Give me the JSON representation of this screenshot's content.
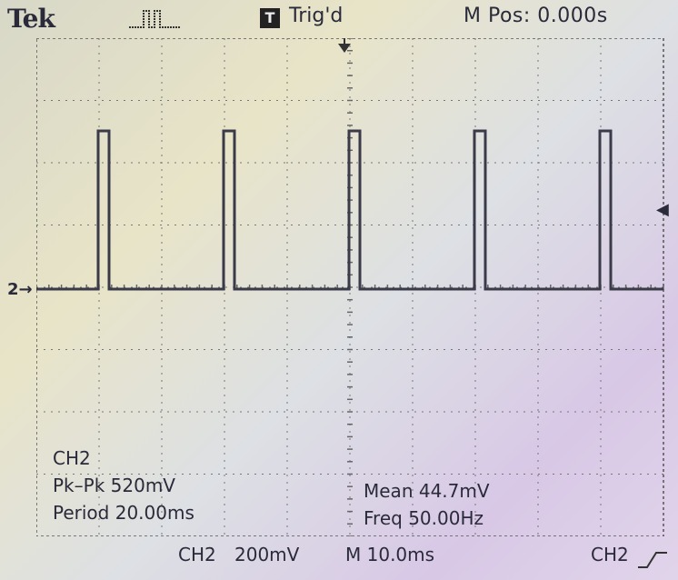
{
  "header": {
    "brand": "Tek",
    "acquire_icon": "pulse-icon",
    "trigger_box": "T",
    "trigger_status": "Trig'd",
    "main_position": "M Pos: 0.000s"
  },
  "screen": {
    "channel_marker": "2",
    "trace_color": "#3a3a48"
  },
  "measurements": {
    "channel": "CH2",
    "pk_pk": "Pk–Pk 520mV",
    "period": "Period 20.00ms",
    "mean": "Mean 44.7mV",
    "freq": "Freq 50.00Hz"
  },
  "footer": {
    "ch_scale_channel": "CH2",
    "ch_scale_value": "200mV",
    "timebase": "M 10.0ms",
    "trigger_source": "CH2",
    "trigger_slope_icon": "rising-edge-icon"
  }
}
